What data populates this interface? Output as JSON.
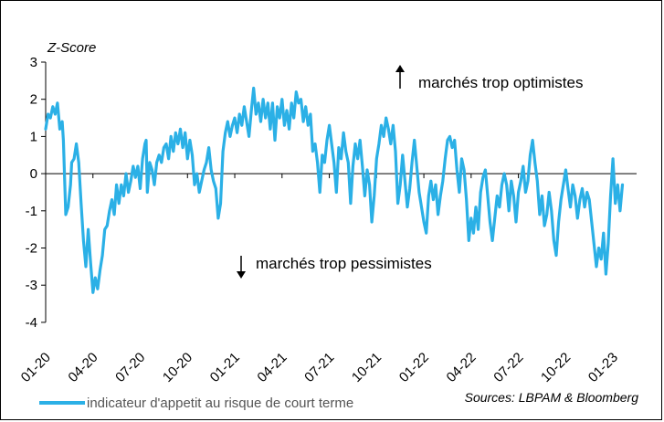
{
  "chart_data": {
    "type": "line",
    "ylabel": "Z-Score",
    "ylim": [
      -4,
      3
    ],
    "yticks": [
      "3",
      "2",
      "1",
      "0",
      "-1",
      "-2",
      "-3",
      "-4"
    ],
    "xticks": [
      "01-20",
      "04-20",
      "07-20",
      "10-20",
      "01-21",
      "04-21",
      "07-21",
      "10-21",
      "01-22",
      "04-22",
      "07-22",
      "10-22",
      "01-23"
    ],
    "x_range": [
      "01-20",
      "02-23"
    ],
    "grid": false,
    "legend_position": "bottom-left",
    "annotations": {
      "upper": "marchés trop optimistes",
      "lower": "marchés trop pessimistes"
    },
    "source": "Sources: LBPAM & Bloomberg",
    "color": "#2BB0E6",
    "series": [
      {
        "name": "indicateur d'appetit au risque de court terme",
        "points": [
          [
            0.0,
            1.2
          ],
          [
            0.1,
            1.6
          ],
          [
            0.2,
            1.5
          ],
          [
            0.3,
            1.8
          ],
          [
            0.4,
            1.6
          ],
          [
            0.5,
            1.9
          ],
          [
            0.6,
            1.2
          ],
          [
            0.7,
            1.4
          ],
          [
            0.75,
            0.9
          ],
          [
            0.85,
            -1.1
          ],
          [
            0.95,
            -0.9
          ],
          [
            1.05,
            -0.3
          ],
          [
            1.1,
            0.3
          ],
          [
            1.2,
            0.4
          ],
          [
            1.3,
            0.8
          ],
          [
            1.4,
            0.3
          ],
          [
            1.5,
            -0.8
          ],
          [
            1.6,
            -1.8
          ],
          [
            1.7,
            -2.5
          ],
          [
            1.8,
            -1.5
          ],
          [
            1.9,
            -2.4
          ],
          [
            2.0,
            -3.2
          ],
          [
            2.1,
            -2.8
          ],
          [
            2.2,
            -3.1
          ],
          [
            2.3,
            -2.6
          ],
          [
            2.4,
            -2.2
          ],
          [
            2.5,
            -1.5
          ],
          [
            2.6,
            -1.4
          ],
          [
            2.7,
            -1.0
          ],
          [
            2.8,
            -0.7
          ],
          [
            2.9,
            -1.1
          ],
          [
            3.0,
            -0.3
          ],
          [
            3.1,
            -0.8
          ],
          [
            3.2,
            -0.3
          ],
          [
            3.3,
            -0.6
          ],
          [
            3.4,
            0.0
          ],
          [
            3.5,
            -0.5
          ],
          [
            3.6,
            -0.2
          ],
          [
            3.7,
            0.2
          ],
          [
            3.8,
            -0.1
          ],
          [
            3.9,
            0.2
          ],
          [
            4.0,
            -0.4
          ],
          [
            4.1,
            0.4
          ],
          [
            4.2,
            0.8
          ],
          [
            4.25,
            0.9
          ],
          [
            4.3,
            -0.5
          ],
          [
            4.4,
            0.3
          ],
          [
            4.5,
            0.1
          ],
          [
            4.6,
            -0.3
          ],
          [
            4.7,
            0.3
          ],
          [
            4.8,
            0.5
          ],
          [
            4.9,
            0.3
          ],
          [
            5.0,
            0.7
          ],
          [
            5.1,
            0.8
          ],
          [
            5.2,
            0.4
          ],
          [
            5.3,
            1.0
          ],
          [
            5.4,
            0.6
          ],
          [
            5.5,
            1.1
          ],
          [
            5.6,
            0.8
          ],
          [
            5.7,
            1.2
          ],
          [
            5.8,
            0.7
          ],
          [
            5.9,
            1.1
          ],
          [
            6.0,
            0.4
          ],
          [
            6.1,
            0.9
          ],
          [
            6.2,
            0.5
          ],
          [
            6.3,
            -0.3
          ],
          [
            6.4,
            0.0
          ],
          [
            6.5,
            -0.5
          ],
          [
            6.6,
            -0.2
          ],
          [
            6.7,
            0.1
          ],
          [
            6.8,
            0.3
          ],
          [
            6.9,
            0.7
          ],
          [
            7.0,
            0.1
          ],
          [
            7.1,
            -0.2
          ],
          [
            7.2,
            -0.4
          ],
          [
            7.3,
            -1.2
          ],
          [
            7.4,
            -0.8
          ],
          [
            7.5,
            0.6
          ],
          [
            7.6,
            1.1
          ],
          [
            7.7,
            1.4
          ],
          [
            7.8,
            1.0
          ],
          [
            7.9,
            1.3
          ],
          [
            8.0,
            1.5
          ],
          [
            8.1,
            1.1
          ],
          [
            8.2,
            1.6
          ],
          [
            8.3,
            1.3
          ],
          [
            8.4,
            1.8
          ],
          [
            8.5,
            1.4
          ],
          [
            8.6,
            1.0
          ],
          [
            8.7,
            1.7
          ],
          [
            8.8,
            2.3
          ],
          [
            8.9,
            1.6
          ],
          [
            9.0,
            1.9
          ],
          [
            9.1,
            1.4
          ],
          [
            9.2,
            2.0
          ],
          [
            9.3,
            1.5
          ],
          [
            9.4,
            1.9
          ],
          [
            9.5,
            1.2
          ],
          [
            9.6,
            1.9
          ],
          [
            9.7,
            0.9
          ],
          [
            9.8,
            1.8
          ],
          [
            9.9,
            1.5
          ],
          [
            10.0,
            2.0
          ],
          [
            10.1,
            1.3
          ],
          [
            10.2,
            1.7
          ],
          [
            10.3,
            1.2
          ],
          [
            10.4,
            1.9
          ],
          [
            10.5,
            1.5
          ],
          [
            10.6,
            2.2
          ],
          [
            10.7,
            1.9
          ],
          [
            10.8,
            2.0
          ],
          [
            10.9,
            1.4
          ],
          [
            11.0,
            1.8
          ],
          [
            11.1,
            1.3
          ],
          [
            11.2,
            1.6
          ],
          [
            11.3,
            0.6
          ],
          [
            11.4,
            0.8
          ],
          [
            11.5,
            0.3
          ],
          [
            11.6,
            -0.5
          ],
          [
            11.7,
            0.5
          ],
          [
            11.8,
            0.3
          ],
          [
            11.9,
            0.9
          ],
          [
            12.0,
            1.3
          ],
          [
            12.1,
            0.8
          ],
          [
            12.2,
            0.3
          ],
          [
            12.3,
            -0.5
          ],
          [
            12.4,
            0.7
          ],
          [
            12.5,
            0.4
          ],
          [
            12.6,
            1.1
          ],
          [
            12.7,
            0.6
          ],
          [
            12.8,
            0.3
          ],
          [
            12.9,
            -0.8
          ],
          [
            13.0,
            0.2
          ],
          [
            13.1,
            0.8
          ],
          [
            13.2,
            0.4
          ],
          [
            13.3,
            0.9
          ],
          [
            13.4,
            0.2
          ],
          [
            13.5,
            -0.6
          ],
          [
            13.6,
            0.1
          ],
          [
            13.7,
            -0.3
          ],
          [
            13.8,
            -1.3
          ],
          [
            13.9,
            -0.6
          ],
          [
            14.0,
            0.4
          ],
          [
            14.1,
            0.8
          ],
          [
            14.2,
            1.3
          ],
          [
            14.3,
            1.0
          ],
          [
            14.4,
            1.5
          ],
          [
            14.5,
            1.2
          ],
          [
            14.6,
            0.8
          ],
          [
            14.7,
            1.3
          ],
          [
            14.8,
            0.6
          ],
          [
            14.9,
            -0.8
          ],
          [
            15.0,
            -0.3
          ],
          [
            15.1,
            0.5
          ],
          [
            15.2,
            -0.2
          ],
          [
            15.3,
            -0.9
          ],
          [
            15.4,
            -0.4
          ],
          [
            15.5,
            0.3
          ],
          [
            15.6,
            0.9
          ],
          [
            15.7,
            0.2
          ],
          [
            15.8,
            -0.5
          ],
          [
            15.9,
            -0.9
          ],
          [
            16.0,
            -1.3
          ],
          [
            16.1,
            -1.6
          ],
          [
            16.2,
            -0.6
          ],
          [
            16.3,
            -0.2
          ],
          [
            16.4,
            -0.7
          ],
          [
            16.5,
            -0.3
          ],
          [
            16.6,
            -1.1
          ],
          [
            16.7,
            -0.6
          ],
          [
            16.8,
            -0.2
          ],
          [
            16.9,
            0.4
          ],
          [
            17.0,
            0.9
          ],
          [
            17.1,
            1.0
          ],
          [
            17.2,
            0.7
          ],
          [
            17.3,
            0.9
          ],
          [
            17.4,
            0.1
          ],
          [
            17.5,
            -0.5
          ],
          [
            17.6,
            0.4
          ],
          [
            17.7,
            0.1
          ],
          [
            17.8,
            -0.7
          ],
          [
            17.9,
            -1.8
          ],
          [
            18.0,
            -1.2
          ],
          [
            18.1,
            -1.6
          ],
          [
            18.2,
            -0.9
          ],
          [
            18.3,
            -1.5
          ],
          [
            18.4,
            -0.5
          ],
          [
            18.5,
            -0.1
          ],
          [
            18.6,
            0.1
          ],
          [
            18.7,
            -0.6
          ],
          [
            18.8,
            -1.3
          ],
          [
            18.9,
            -1.8
          ],
          [
            19.0,
            -1.2
          ],
          [
            19.1,
            -0.6
          ],
          [
            19.2,
            -0.9
          ],
          [
            19.3,
            -0.3
          ],
          [
            19.4,
            0.0
          ],
          [
            19.5,
            -0.3
          ],
          [
            19.6,
            -1.0
          ],
          [
            19.7,
            -0.2
          ],
          [
            19.8,
            -0.6
          ],
          [
            19.9,
            -1.3
          ],
          [
            20.0,
            -0.5
          ],
          [
            20.1,
            -0.2
          ],
          [
            20.2,
            0.2
          ],
          [
            20.3,
            -0.5
          ],
          [
            20.4,
            -0.2
          ],
          [
            20.5,
            0.5
          ],
          [
            20.6,
            0.9
          ],
          [
            20.7,
            0.3
          ],
          [
            20.8,
            -0.2
          ],
          [
            20.9,
            -1.1
          ],
          [
            21.0,
            -0.6
          ],
          [
            21.1,
            -1.4
          ],
          [
            21.2,
            -1.1
          ],
          [
            21.3,
            -0.5
          ],
          [
            21.4,
            -1.0
          ],
          [
            21.5,
            -1.8
          ],
          [
            21.6,
            -2.2
          ],
          [
            21.7,
            -1.3
          ],
          [
            21.8,
            -0.7
          ],
          [
            21.9,
            -0.3
          ],
          [
            22.0,
            0.1
          ],
          [
            22.1,
            -0.4
          ],
          [
            22.2,
            -0.9
          ],
          [
            22.3,
            -0.3
          ],
          [
            22.4,
            -0.6
          ],
          [
            22.5,
            -1.2
          ],
          [
            22.6,
            -0.7
          ],
          [
            22.7,
            -0.4
          ],
          [
            22.8,
            -0.9
          ],
          [
            22.9,
            -0.5
          ],
          [
            23.0,
            -0.7
          ],
          [
            23.1,
            -1.3
          ],
          [
            23.2,
            -1.9
          ],
          [
            23.3,
            -2.5
          ],
          [
            23.4,
            -2.0
          ],
          [
            23.5,
            -2.3
          ],
          [
            23.6,
            -1.6
          ],
          [
            23.7,
            -2.7
          ],
          [
            23.8,
            -1.9
          ],
          [
            23.9,
            -0.6
          ],
          [
            24.0,
            0.4
          ],
          [
            24.1,
            -0.8
          ],
          [
            24.2,
            -0.3
          ],
          [
            24.3,
            -1.0
          ],
          [
            24.4,
            -0.3
          ]
        ]
      }
    ]
  }
}
